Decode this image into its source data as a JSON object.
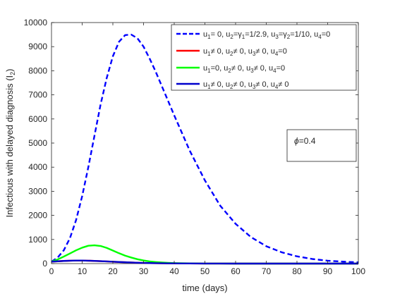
{
  "chart_data": {
    "type": "line",
    "xlabel": "time (days)",
    "ylabel": "Infectious with delayed diagnosis (I",
    "ylabel_sub": "2",
    "ylabel_end": ")",
    "xlim": [
      0,
      100
    ],
    "ylim": [
      0,
      10000
    ],
    "x_ticks": [
      0,
      10,
      20,
      30,
      40,
      50,
      60,
      70,
      80,
      90,
      100
    ],
    "y_ticks": [
      0,
      1000,
      2000,
      3000,
      4000,
      5000,
      6000,
      7000,
      8000,
      9000,
      10000
    ],
    "legend_position": "top-right",
    "annotation": {
      "symbol": "ϕ",
      "text": "=0.4"
    },
    "x": [
      0,
      2,
      4,
      6,
      8,
      10,
      12,
      14,
      16,
      18,
      20,
      22,
      24,
      26,
      28,
      30,
      32,
      34,
      36,
      38,
      40,
      45,
      50,
      55,
      60,
      65,
      70,
      75,
      80,
      85,
      90,
      95,
      100
    ],
    "series": [
      {
        "label_parts": [
          {
            "t": "u"
          },
          {
            "t": "1",
            "sub": true
          },
          {
            "t": "= 0, u"
          },
          {
            "t": "2",
            "sub": true
          },
          {
            "t": "=γ"
          },
          {
            "t": "1",
            "sub": true
          },
          {
            "t": "=1/2.9, u"
          },
          {
            "t": "3",
            "sub": true
          },
          {
            "t": "=γ"
          },
          {
            "t": "2",
            "sub": true
          },
          {
            "t": "=1/10, u"
          },
          {
            "t": "4",
            "sub": true
          },
          {
            "t": "=0"
          }
        ],
        "color": "#0000ff",
        "dash": "dashed",
        "values": [
          80,
          250,
          550,
          1050,
          1800,
          2800,
          4000,
          5300,
          6600,
          7700,
          8600,
          9200,
          9480,
          9500,
          9350,
          9000,
          8500,
          7950,
          7350,
          6750,
          6150,
          4700,
          3450,
          2400,
          1650,
          1100,
          720,
          470,
          300,
          190,
          120,
          80,
          50
        ]
      },
      {
        "label_parts": [
          {
            "t": "u"
          },
          {
            "t": "1",
            "sub": true
          },
          {
            "t": "≠ 0, u"
          },
          {
            "t": "2",
            "sub": true
          },
          {
            "t": "≠ 0, u"
          },
          {
            "t": "3",
            "sub": true
          },
          {
            "t": "≠ 0, u"
          },
          {
            "t": "4",
            "sub": true
          },
          {
            "t": "=0"
          }
        ],
        "color": "#ff0000",
        "dash": "solid",
        "values": [
          80,
          95,
          110,
          120,
          125,
          125,
          120,
          110,
          100,
          90,
          75,
          65,
          55,
          45,
          35,
          28,
          22,
          17,
          13,
          10,
          8,
          4,
          2,
          1,
          0,
          0,
          0,
          0,
          0,
          0,
          0,
          0,
          0
        ]
      },
      {
        "label_parts": [
          {
            "t": "u"
          },
          {
            "t": "1",
            "sub": true
          },
          {
            "t": "=0, u"
          },
          {
            "t": "2",
            "sub": true
          },
          {
            "t": "≠ 0, u"
          },
          {
            "t": "3",
            "sub": true
          },
          {
            "t": "≠ 0, u"
          },
          {
            "t": "4",
            "sub": true
          },
          {
            "t": "=0"
          }
        ],
        "color": "#00ff00",
        "dash": "solid",
        "values": [
          80,
          170,
          290,
          420,
          550,
          660,
          740,
          760,
          730,
          650,
          540,
          430,
          330,
          250,
          180,
          130,
          90,
          65,
          45,
          30,
          20,
          8,
          3,
          1,
          0,
          0,
          0,
          0,
          0,
          0,
          0,
          0,
          0
        ]
      },
      {
        "label_parts": [
          {
            "t": "u"
          },
          {
            "t": "1",
            "sub": true
          },
          {
            "t": "≠ 0, u"
          },
          {
            "t": "2",
            "sub": true
          },
          {
            "t": "≠ 0, u"
          },
          {
            "t": "3",
            "sub": true
          },
          {
            "t": "≠ 0, u"
          },
          {
            "t": "4",
            "sub": true
          },
          {
            "t": "≠ 0"
          }
        ],
        "color": "#0000cc",
        "dash": "solid",
        "values": [
          80,
          95,
          110,
          120,
          125,
          125,
          120,
          112,
          100,
          90,
          78,
          66,
          55,
          45,
          36,
          28,
          22,
          17,
          13,
          10,
          8,
          4,
          2,
          1,
          0,
          0,
          0,
          0,
          0,
          0,
          0,
          0,
          0
        ]
      }
    ]
  }
}
